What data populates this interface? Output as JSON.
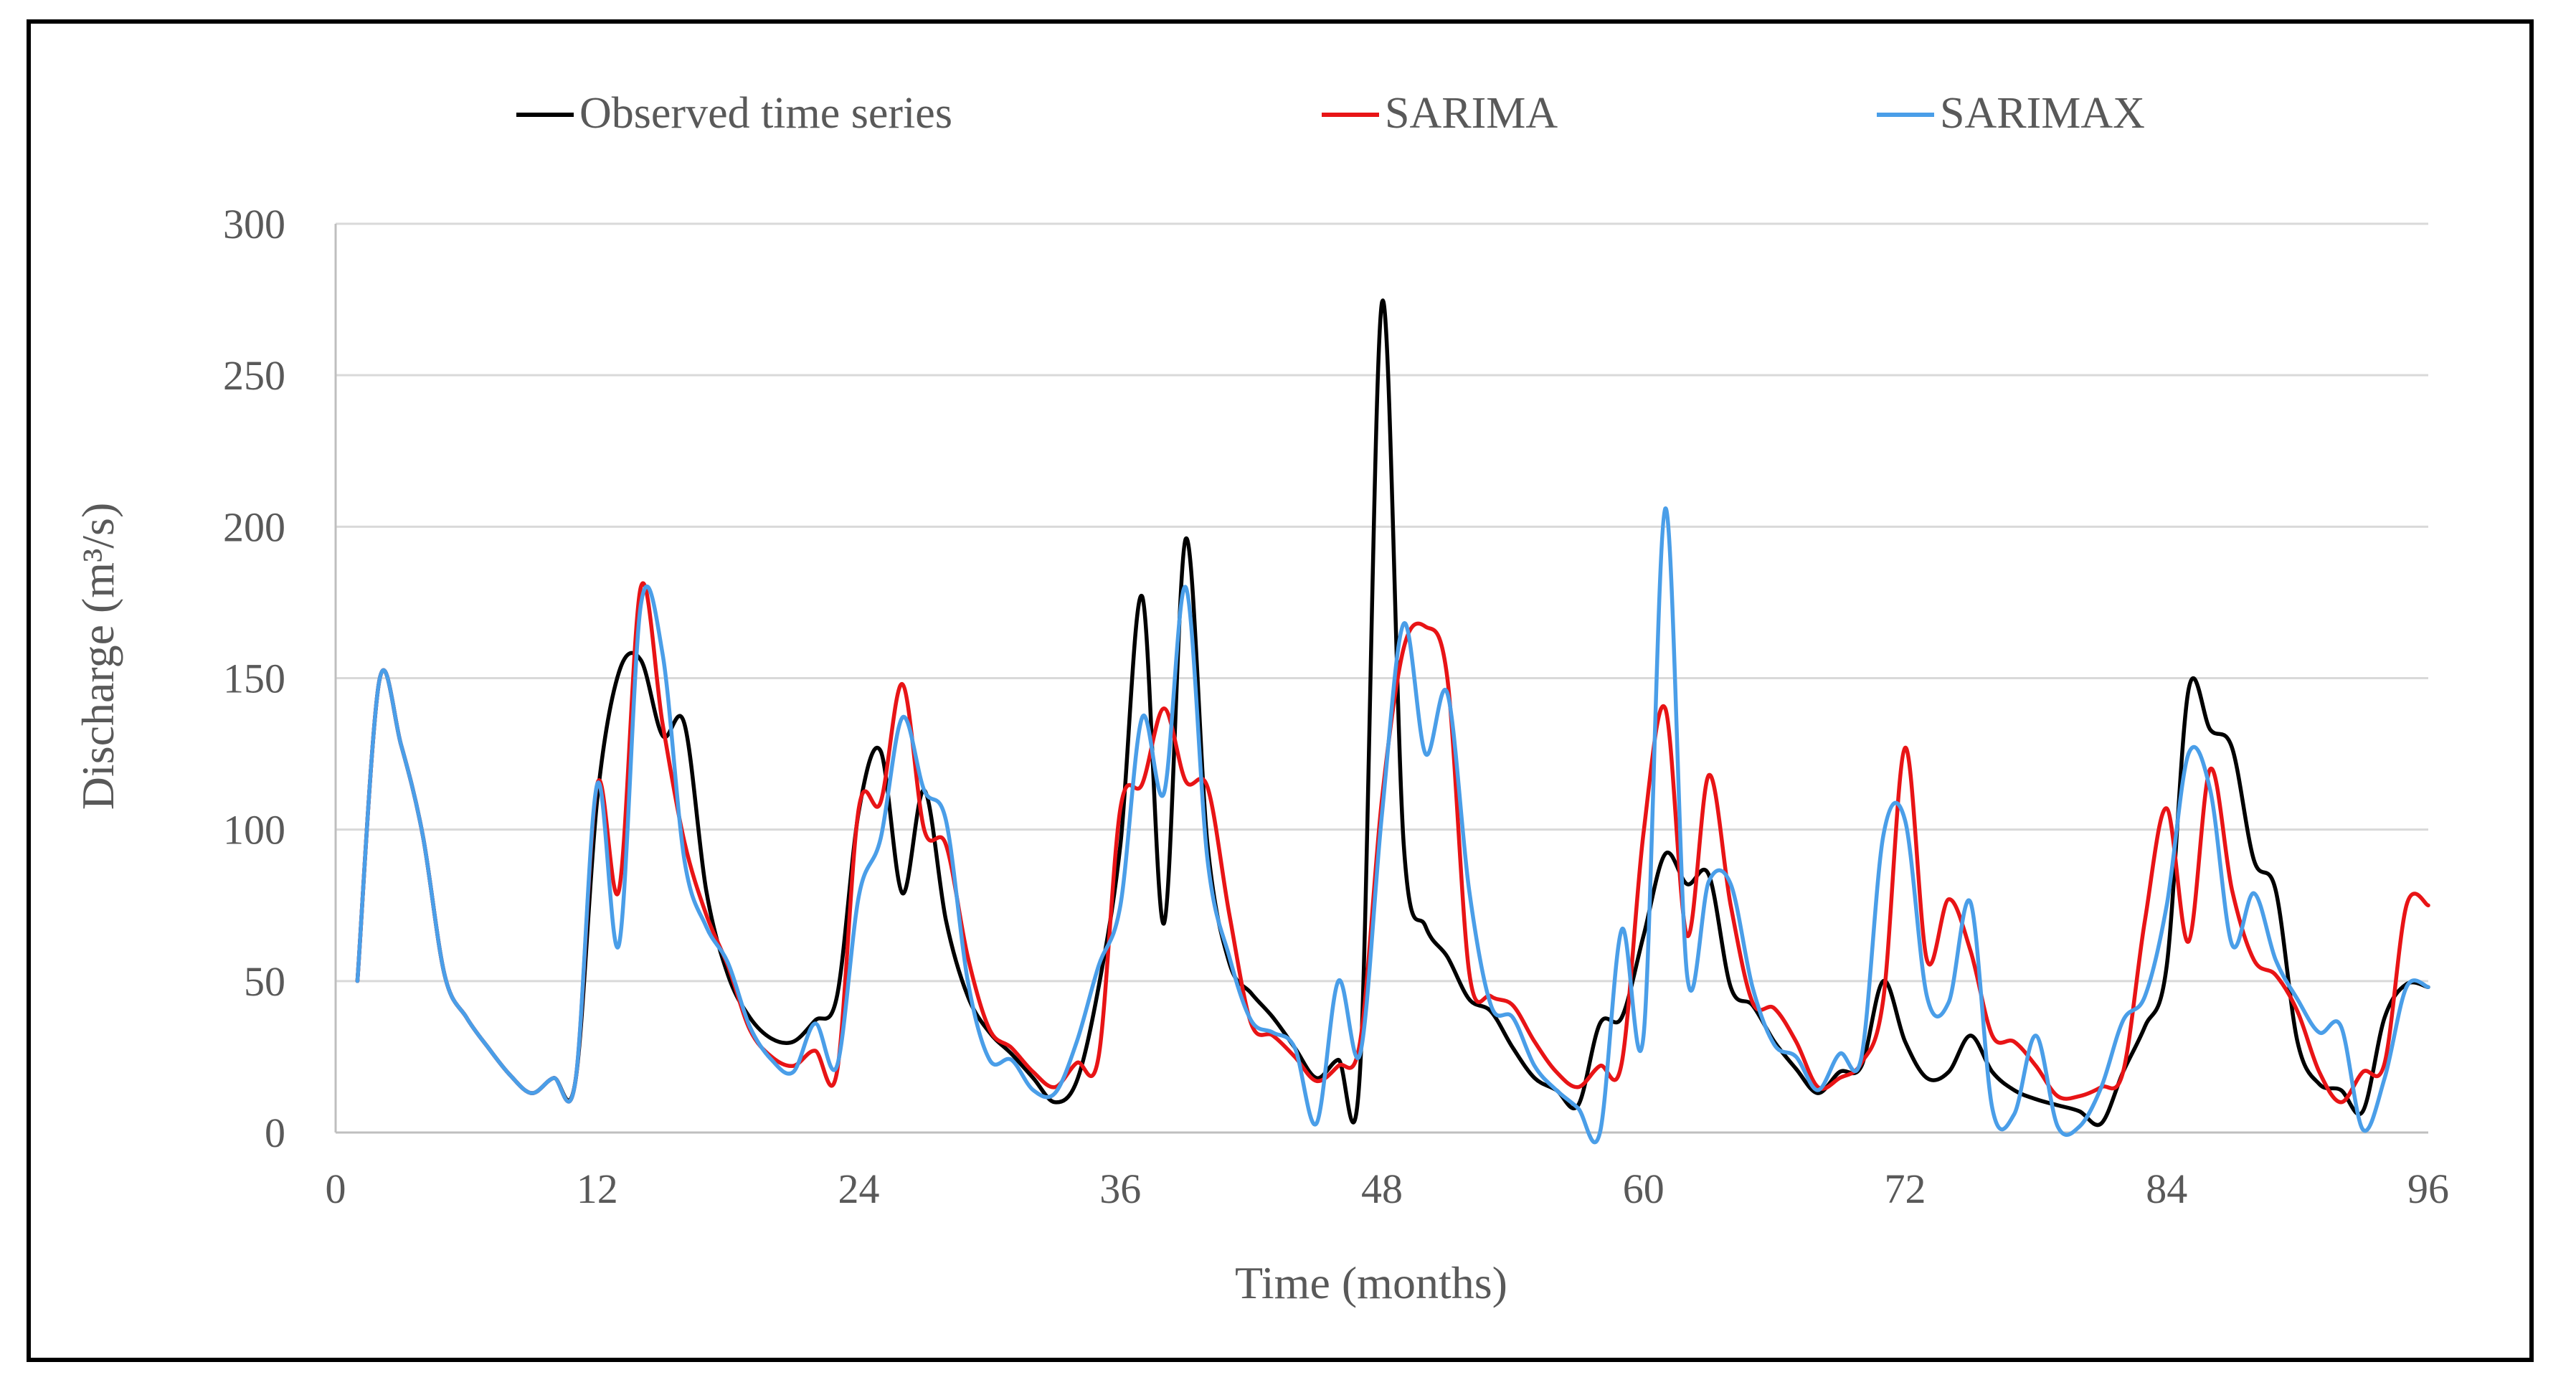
{
  "chart_data": {
    "type": "line",
    "title": "",
    "xlabel": "Time (months)",
    "ylabel": "Discharge (m³/s)",
    "xlim": [
      0,
      96
    ],
    "ylim": [
      0,
      300
    ],
    "x_ticks": [
      0,
      12,
      24,
      36,
      48,
      60,
      72,
      84,
      96
    ],
    "y_ticks": [
      0,
      50,
      100,
      150,
      200,
      250,
      300
    ],
    "grid": "horizontal",
    "legend_position": "top",
    "x": [
      1,
      2,
      3,
      4,
      5,
      6,
      7,
      8,
      9,
      10,
      11,
      12,
      13,
      14,
      15,
      16,
      17,
      18,
      19,
      20,
      21,
      22,
      23,
      24,
      25,
      26,
      27,
      28,
      29,
      30,
      31,
      32,
      33,
      34,
      35,
      36,
      37,
      38,
      39,
      40,
      41,
      42,
      43,
      44,
      45,
      46,
      47,
      48,
      49,
      50,
      51,
      52,
      53,
      54,
      55,
      56,
      57,
      58,
      59,
      60,
      61,
      62,
      63,
      64,
      65,
      66,
      67,
      68,
      69,
      70,
      71,
      72,
      73,
      74,
      75,
      76,
      77,
      78,
      79,
      80,
      81,
      82,
      83,
      84,
      85,
      86,
      87,
      88,
      89,
      90,
      91,
      92,
      93,
      94,
      95,
      96
    ],
    "series": [
      {
        "name": "Observed time series",
        "color": "#000000",
        "values": [
          50,
          149,
          128,
          98,
          52,
          38,
          28,
          19,
          13,
          18,
          17,
          110,
          152,
          156,
          131,
          135,
          80,
          52,
          38,
          31,
          30,
          37,
          45,
          106,
          126,
          79,
          113,
          70,
          45,
          33,
          26,
          18,
          10,
          17,
          48,
          95,
          177,
          69,
          196,
          95,
          56,
          46,
          38,
          28,
          18,
          24,
          21,
          274,
          95,
          68,
          58,
          44,
          40,
          28,
          18,
          14,
          9,
          36,
          38,
          65,
          92,
          82,
          85,
          48,
          42,
          30,
          21,
          13,
          20,
          22,
          50,
          30,
          18,
          20,
          32,
          20,
          14,
          11,
          9,
          7,
          3,
          20,
          35,
          55,
          146,
          133,
          127,
          90,
          80,
          30,
          16,
          14,
          7,
          38,
          49,
          48
        ]
      },
      {
        "name": "SARIMA",
        "color": "#e81416",
        "values": [
          50,
          149,
          128,
          98,
          52,
          38,
          28,
          19,
          13,
          18,
          17,
          115,
          80,
          180,
          135,
          96,
          72,
          55,
          34,
          25,
          22,
          27,
          20,
          107,
          109,
          148,
          100,
          95,
          58,
          34,
          28,
          20,
          15,
          23,
          25,
          107,
          115,
          140,
          116,
          114,
          72,
          36,
          32,
          25,
          17,
          22,
          30,
          110,
          160,
          167,
          150,
          53,
          45,
          42,
          30,
          20,
          15,
          22,
          23,
          99,
          140,
          65,
          118,
          75,
          43,
          41,
          30,
          15,
          18,
          23,
          44,
          127,
          57,
          77,
          60,
          32,
          30,
          22,
          12,
          12,
          15,
          20,
          70,
          107,
          63,
          120,
          80,
          57,
          52,
          40,
          20,
          10,
          20,
          23,
          75,
          75
        ]
      },
      {
        "name": "SARIMAX",
        "color": "#4a9ee8",
        "values": [
          50,
          149,
          128,
          98,
          52,
          38,
          28,
          19,
          13,
          18,
          17,
          115,
          62,
          174,
          158,
          90,
          68,
          56,
          35,
          24,
          20,
          36,
          22,
          78,
          97,
          137,
          113,
          103,
          50,
          24,
          24,
          14,
          13,
          30,
          55,
          75,
          137,
          112,
          180,
          90,
          58,
          37,
          33,
          28,
          3,
          50,
          26,
          105,
          168,
          125,
          145,
          80,
          42,
          38,
          22,
          14,
          8,
          0,
          67,
          32,
          206,
          52,
          83,
          82,
          48,
          29,
          25,
          14,
          26,
          25,
          98,
          103,
          45,
          43,
          76,
          8,
          6,
          32,
          2,
          2,
          15,
          37,
          45,
          75,
          125,
          113,
          62,
          79,
          57,
          44,
          33,
          35,
          1,
          18,
          48,
          48
        ]
      }
    ]
  }
}
